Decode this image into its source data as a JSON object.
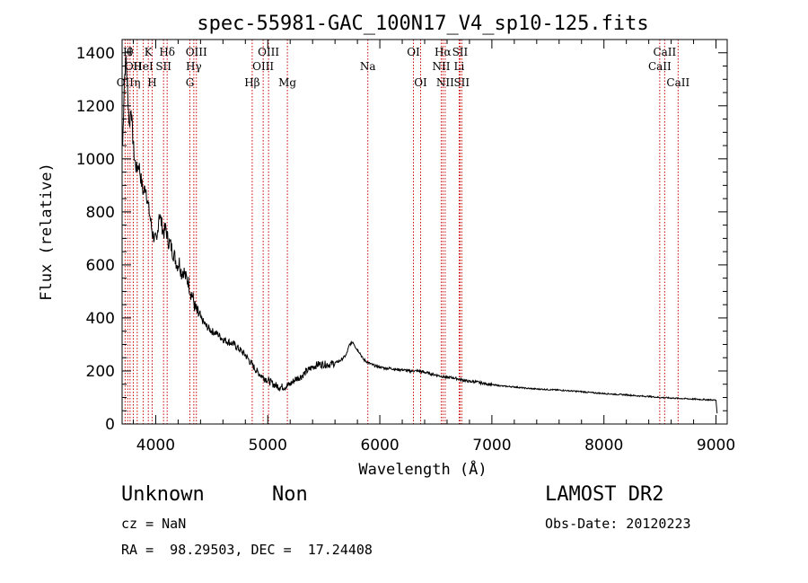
{
  "chart_data": {
    "type": "line",
    "title": "spec-55981-GAC_100N17_V4_sp10-125.fits",
    "xlabel": "Wavelength (Å)",
    "ylabel": "Flux (relative)",
    "xlim": [
      3700,
      9100
    ],
    "ylim": [
      0,
      1450
    ],
    "x_ticks": [
      4000,
      5000,
      6000,
      7000,
      8000,
      9000
    ],
    "y_ticks": [
      0,
      200,
      400,
      600,
      800,
      1000,
      1200,
      1400
    ],
    "grid": false,
    "legend": "none",
    "series": [
      {
        "points": [
          [
            3705,
            1050
          ],
          [
            3720,
            1300
          ],
          [
            3735,
            1380
          ],
          [
            3750,
            1250
          ],
          [
            3765,
            1120
          ],
          [
            3780,
            1200
          ],
          [
            3795,
            1080
          ],
          [
            3810,
            1000
          ],
          [
            3830,
            960
          ],
          [
            3850,
            980
          ],
          [
            3870,
            920
          ],
          [
            3890,
            870
          ],
          [
            3910,
            900
          ],
          [
            3930,
            830
          ],
          [
            3950,
            780
          ],
          [
            3970,
            720
          ],
          [
            3990,
            700
          ],
          [
            4010,
            680
          ],
          [
            4030,
            800
          ],
          [
            4050,
            760
          ],
          [
            4070,
            720
          ],
          [
            4090,
            740
          ],
          [
            4110,
            690
          ],
          [
            4130,
            680
          ],
          [
            4150,
            650
          ],
          [
            4170,
            630
          ],
          [
            4190,
            600
          ],
          [
            4210,
            610
          ],
          [
            4230,
            570
          ],
          [
            4250,
            580
          ],
          [
            4270,
            550
          ],
          [
            4290,
            540
          ],
          [
            4310,
            500
          ],
          [
            4330,
            480
          ],
          [
            4350,
            440
          ],
          [
            4370,
            420
          ],
          [
            4400,
            400
          ],
          [
            4450,
            370
          ],
          [
            4500,
            350
          ],
          [
            4550,
            340
          ],
          [
            4600,
            320
          ],
          [
            4650,
            310
          ],
          [
            4700,
            300
          ],
          [
            4750,
            280
          ],
          [
            4800,
            260
          ],
          [
            4850,
            230
          ],
          [
            4900,
            200
          ],
          [
            4950,
            180
          ],
          [
            5000,
            165
          ],
          [
            5050,
            150
          ],
          [
            5100,
            140
          ],
          [
            5150,
            140
          ],
          [
            5200,
            150
          ],
          [
            5250,
            170
          ],
          [
            5300,
            180
          ],
          [
            5350,
            200
          ],
          [
            5400,
            215
          ],
          [
            5450,
            225
          ],
          [
            5500,
            225
          ],
          [
            5550,
            225
          ],
          [
            5600,
            230
          ],
          [
            5650,
            240
          ],
          [
            5700,
            260
          ],
          [
            5730,
            300
          ],
          [
            5760,
            310
          ],
          [
            5790,
            285
          ],
          [
            5820,
            270
          ],
          [
            5850,
            245
          ],
          [
            5900,
            230
          ],
          [
            5950,
            220
          ],
          [
            6000,
            215
          ],
          [
            6050,
            210
          ],
          [
            6100,
            210
          ],
          [
            6150,
            205
          ],
          [
            6200,
            205
          ],
          [
            6250,
            200
          ],
          [
            6300,
            200
          ],
          [
            6350,
            200
          ],
          [
            6400,
            195
          ],
          [
            6450,
            190
          ],
          [
            6500,
            185
          ],
          [
            6550,
            180
          ],
          [
            6600,
            175
          ],
          [
            6650,
            175
          ],
          [
            6700,
            170
          ],
          [
            6750,
            165
          ],
          [
            6800,
            160
          ],
          [
            6850,
            160
          ],
          [
            6900,
            155
          ],
          [
            6950,
            152
          ],
          [
            7000,
            148
          ],
          [
            7100,
            143
          ],
          [
            7200,
            140
          ],
          [
            7300,
            135
          ],
          [
            7400,
            132
          ],
          [
            7500,
            130
          ],
          [
            7600,
            128
          ],
          [
            7700,
            125
          ],
          [
            7800,
            122
          ],
          [
            7900,
            118
          ],
          [
            8000,
            115
          ],
          [
            8100,
            112
          ],
          [
            8200,
            110
          ],
          [
            8300,
            106
          ],
          [
            8400,
            104
          ],
          [
            8500,
            100
          ],
          [
            8600,
            98
          ],
          [
            8700,
            96
          ],
          [
            8800,
            94
          ],
          [
            8900,
            92
          ],
          [
            9000,
            90
          ],
          [
            9010,
            40
          ]
        ]
      }
    ],
    "line_markers": [
      {
        "label": "OII",
        "wavelength": 3727,
        "row": 3
      },
      {
        "label": "H",
        "wavelength": 3750,
        "row": 1
      },
      {
        "label": "θ",
        "wavelength": 3771,
        "row": 1
      },
      {
        "label": "OII",
        "wavelength": 3800,
        "row": 2
      },
      {
        "label": "HeI",
        "wavelength": 3889,
        "row": 2
      },
      {
        "label": "K",
        "wavelength": 3934,
        "row": 1
      },
      {
        "label": "η",
        "wavelength": 3835,
        "row": 3
      },
      {
        "label": "H",
        "wavelength": 3968,
        "row": 3
      },
      {
        "label": "SII",
        "wavelength": 4070,
        "row": 2
      },
      {
        "label": "Hδ",
        "wavelength": 4102,
        "row": 1
      },
      {
        "label": "OIII",
        "wavelength": 4363,
        "row": 1
      },
      {
        "label": "Hγ",
        "wavelength": 4340,
        "row": 2
      },
      {
        "label": "G",
        "wavelength": 4305,
        "row": 3
      },
      {
        "label": "Hβ",
        "wavelength": 4861,
        "row": 3
      },
      {
        "label": "OIII",
        "wavelength": 5007,
        "row": 1
      },
      {
        "label": "OIII",
        "wavelength": 4959,
        "row": 2
      },
      {
        "label": "Mg",
        "wavelength": 5175,
        "row": 3
      },
      {
        "label": "Na",
        "wavelength": 5893,
        "row": 2
      },
      {
        "label": "OI",
        "wavelength": 6300,
        "row": 1
      },
      {
        "label": "OI",
        "wavelength": 6364,
        "row": 3
      },
      {
        "label": "Hα",
        "wavelength": 6563,
        "row": 1
      },
      {
        "label": "NII",
        "wavelength": 6548,
        "row": 2
      },
      {
        "label": "NII",
        "wavelength": 6583,
        "row": 3
      },
      {
        "label": "SII",
        "wavelength": 6716,
        "row": 1
      },
      {
        "label": "Li",
        "wavelength": 6708,
        "row": 2
      },
      {
        "label": "SII",
        "wavelength": 6731,
        "row": 3
      },
      {
        "label": "CaII",
        "wavelength": 8542,
        "row": 1
      },
      {
        "label": "CaII",
        "wavelength": 8498,
        "row": 2
      },
      {
        "label": "CaII",
        "wavelength": 8662,
        "row": 3
      }
    ]
  },
  "info": {
    "class": "Unknown",
    "subclass": "Non",
    "survey": "LAMOST DR2",
    "cz": "cz = NaN",
    "obs_date": "Obs-Date: 20120223",
    "coords": "RA =  98.29503, DEC =  17.24408"
  },
  "colors": {
    "spectrum": "#000000",
    "marker_line": "#cc0000",
    "axes": "#000000"
  }
}
